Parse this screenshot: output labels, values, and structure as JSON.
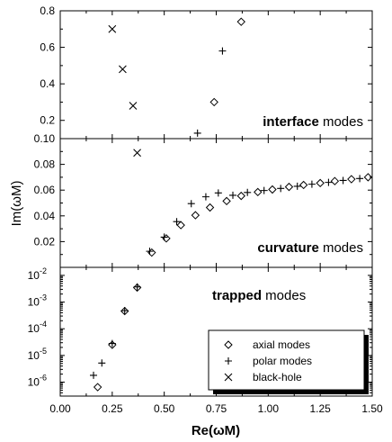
{
  "chart_data": [
    {
      "panel": "top",
      "type": "scatter",
      "annotation": {
        "bold": "interface",
        "rest": " modes"
      },
      "ylim": [
        0.1,
        0.8
      ],
      "yticks": [
        "0.2",
        "0.4",
        "0.6",
        "0.8"
      ],
      "yticks_val": [
        0.2,
        0.4,
        0.6,
        0.8
      ],
      "series": [
        {
          "name": "axial modes",
          "marker": "diamond",
          "points": [
            [
              0.74,
              0.3
            ],
            [
              0.87,
              0.74
            ]
          ]
        },
        {
          "name": "polar modes",
          "marker": "plus",
          "points": [
            [
              0.66,
              0.13
            ],
            [
              0.78,
              0.58
            ]
          ]
        },
        {
          "name": "black-hole",
          "marker": "x",
          "points": [
            [
              0.25,
              0.7
            ],
            [
              0.3,
              0.48
            ],
            [
              0.35,
              0.28
            ]
          ]
        }
      ]
    },
    {
      "panel": "middle",
      "type": "scatter",
      "annotation": {
        "bold": "curvature",
        "rest": " modes"
      },
      "ylim": [
        0.0,
        0.1
      ],
      "yticks": [
        "0.02",
        "0.04",
        "0.06",
        "0.08",
        "0.10"
      ],
      "yticks_val": [
        0.02,
        0.04,
        0.06,
        0.08,
        0.1
      ],
      "series": [
        {
          "name": "axial modes",
          "marker": "diamond",
          "points": [
            [
              0.44,
              0.0115
            ],
            [
              0.51,
              0.0225
            ],
            [
              0.58,
              0.0328
            ],
            [
              0.65,
              0.0405
            ],
            [
              0.72,
              0.0465
            ],
            [
              0.8,
              0.0515
            ],
            [
              0.87,
              0.0555
            ],
            [
              0.95,
              0.0585
            ],
            [
              1.02,
              0.0605
            ],
            [
              1.1,
              0.0625
            ],
            [
              1.17,
              0.064
            ],
            [
              1.25,
              0.0655
            ],
            [
              1.32,
              0.067
            ],
            [
              1.4,
              0.0685
            ],
            [
              1.48,
              0.07
            ]
          ]
        },
        {
          "name": "polar modes",
          "marker": "plus",
          "points": [
            [
              0.43,
              0.0125
            ],
            [
              0.5,
              0.0235
            ],
            [
              0.56,
              0.0355
            ],
            [
              0.63,
              0.0495
            ],
            [
              0.7,
              0.0548
            ],
            [
              0.76,
              0.0578
            ],
            [
              0.83,
              0.056
            ],
            [
              0.9,
              0.0582
            ],
            [
              0.98,
              0.0597
            ],
            [
              1.06,
              0.0613
            ],
            [
              1.14,
              0.063
            ],
            [
              1.21,
              0.0646
            ],
            [
              1.29,
              0.066
            ],
            [
              1.36,
              0.0675
            ],
            [
              1.44,
              0.069
            ]
          ]
        },
        {
          "name": "black-hole",
          "marker": "x",
          "points": [
            [
              0.37,
              0.089
            ]
          ]
        }
      ]
    },
    {
      "panel": "bottom",
      "type": "scatter",
      "scale": "log",
      "annotation": {
        "bold": "trapped",
        "rest": " modes"
      },
      "ylim": [
        3e-07,
        0.02
      ],
      "yticks_exp": [
        -6,
        -5,
        -4,
        -3,
        -2
      ],
      "series": [
        {
          "name": "axial modes",
          "marker": "diamond",
          "points": [
            [
              0.18,
              6.5e-07
            ],
            [
              0.25,
              2.5e-05
            ],
            [
              0.31,
              0.00046
            ],
            [
              0.37,
              0.0035
            ]
          ]
        },
        {
          "name": "polar modes",
          "marker": "plus",
          "points": [
            [
              0.16,
              1.8e-06
            ],
            [
              0.2,
              5.2e-06
            ],
            [
              0.25,
              2.8e-05
            ],
            [
              0.31,
              0.00048
            ],
            [
              0.37,
              0.0037
            ]
          ]
        },
        {
          "name": "black-hole",
          "marker": "x",
          "points": []
        }
      ]
    }
  ],
  "xaxis": {
    "label": "Re(ωM)",
    "xlim": [
      0.0,
      1.5
    ],
    "ticks": [
      "0.00",
      "0.25",
      "0.50",
      "0.75",
      "1.00",
      "1.25",
      "1.50"
    ],
    "ticks_val": [
      0.0,
      0.25,
      0.5,
      0.75,
      1.0,
      1.25,
      1.5
    ]
  },
  "ylabel": "Im(ωM)",
  "legend": {
    "placement": "bottom-right of bottom panel",
    "items": [
      {
        "marker": "diamond",
        "label": "axial modes"
      },
      {
        "marker": "plus",
        "label": "polar modes"
      },
      {
        "marker": "x",
        "label": "black-hole"
      }
    ]
  },
  "colors": {
    "markers": "#000000",
    "background": "#ffffff"
  }
}
